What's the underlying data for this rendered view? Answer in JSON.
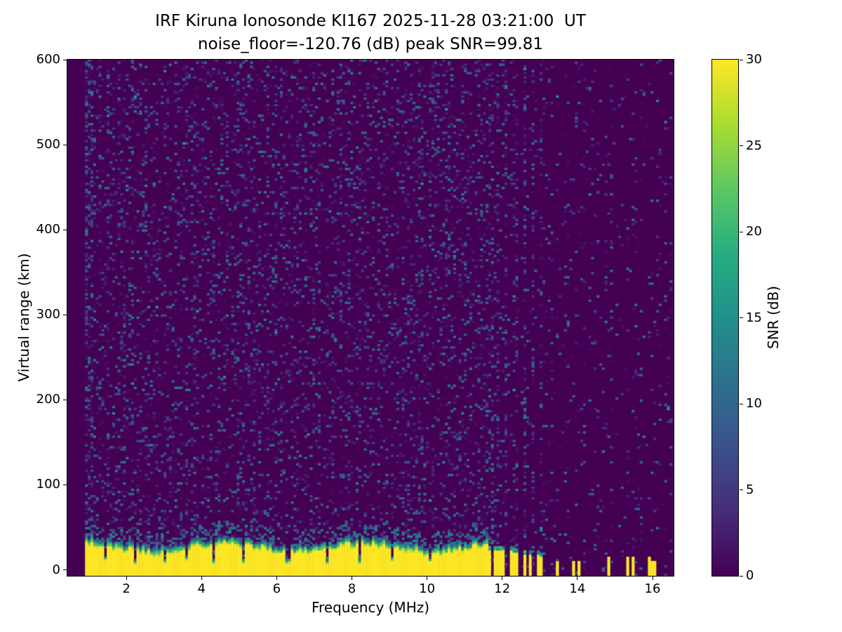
{
  "chart_data": {
    "type": "heatmap",
    "title": "IRF Kiruna Ionosonde KI167 2025-11-28 03:21:00  UT",
    "subtitle": "noise_floor=-120.76 (dB) peak SNR=99.81",
    "station": "IRF Kiruna Ionosonde KI167",
    "timestamp_ut": "2025-11-28 03:21:00",
    "noise_floor_db": -120.76,
    "peak_snr_db": 99.81,
    "xlabel": "Frequency (MHz)",
    "ylabel": "Virtual range (km)",
    "colorbar_label": "SNR (dB)",
    "colormap": "viridis",
    "xlim": [
      0.43,
      16.56
    ],
    "ylim": [
      -7,
      600
    ],
    "clim": [
      0,
      30
    ],
    "x_ticks": [
      2,
      4,
      6,
      8,
      10,
      12,
      14,
      16
    ],
    "y_ticks": [
      0,
      100,
      200,
      300,
      400,
      500,
      600
    ],
    "colorbar_ticks": [
      0,
      5,
      10,
      15,
      20,
      25,
      30
    ],
    "data": {
      "freq_range_mhz": [
        0.9,
        16.5
      ],
      "freq_step_mhz": 0.072,
      "range_step_km": 2.5,
      "ground_echo": {
        "freq_range_mhz": [
          0.9,
          11.62
        ],
        "top_range_km": 30,
        "edge_fuzz_km": [
          28,
          48
        ],
        "snr_db": 30,
        "notch_freqs_mhz": [
          1.45,
          2.25,
          3.05,
          3.62,
          4.3,
          5.12,
          6.3,
          7.32,
          8.2,
          9.05,
          10.1
        ]
      },
      "intermittent_echo": {
        "freq_range_mhz": [
          11.62,
          13.12
        ],
        "top_range_km": 24,
        "snr_db": 30,
        "on_probability": 0.5
      },
      "isolated_echo_freqs_mhz": [
        13.45,
        13.9,
        14.02,
        14.85,
        15.35,
        15.47,
        15.9,
        16.02
      ],
      "noise": {
        "speckle_snr_db_max": 12,
        "density_below_11_6_mhz": 0.16,
        "density_above_11_6_mhz": 0.05,
        "rfi_stripe_freqs_mhz": [
          11.7,
          11.9,
          12.12,
          12.35,
          12.6,
          12.82,
          13.02
        ]
      }
    }
  }
}
